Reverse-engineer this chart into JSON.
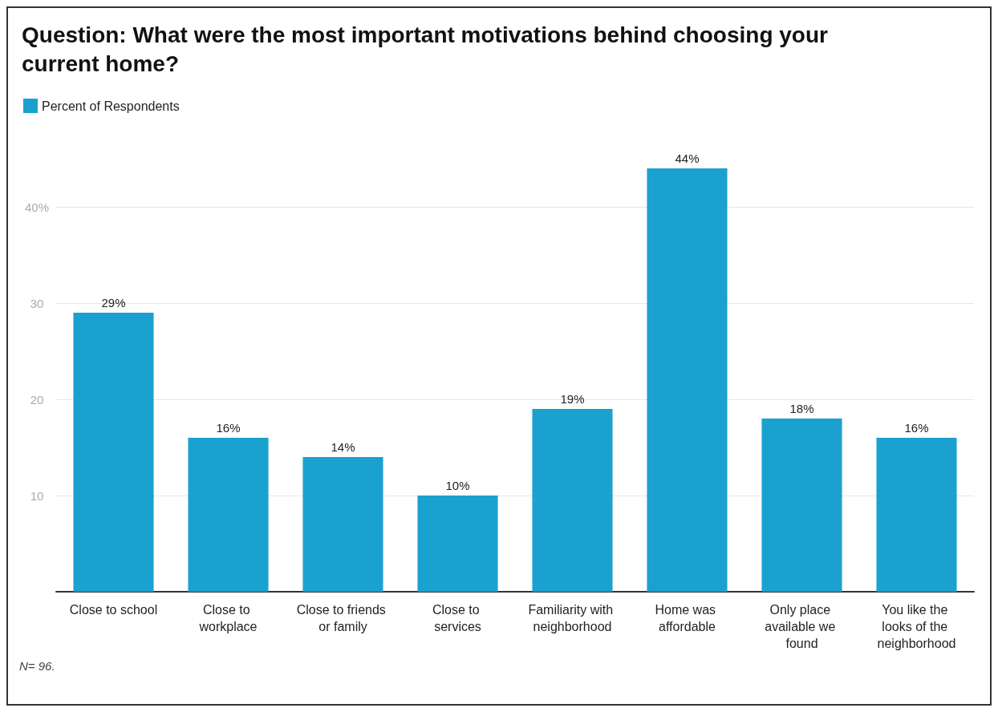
{
  "chart_data": {
    "type": "bar",
    "title": "Question: What were the most important motivations behind choosing your current home?",
    "categories": [
      "Close to school",
      "Close to workplace",
      "Close to friends or family",
      "Close to services",
      "Familiarity with neighborhood",
      "Home was affordable",
      "Only place available we found",
      "You like the looks of the neighborhood"
    ],
    "series": [
      {
        "name": "Percent of Respondents",
        "color": "#1ba1cf",
        "values": [
          29,
          16,
          14,
          10,
          19,
          44,
          18,
          16
        ],
        "value_labels": [
          "29%",
          "16%",
          "14%",
          "10%",
          "19%",
          "44%",
          "18%",
          "16%"
        ]
      }
    ],
    "ylim": [
      0,
      44
    ],
    "yticks": [
      10,
      20,
      30,
      {
        "value": 40,
        "label": "40%"
      }
    ],
    "grid": "y",
    "legend": "top left",
    "annotations": [
      "N= 96."
    ]
  }
}
